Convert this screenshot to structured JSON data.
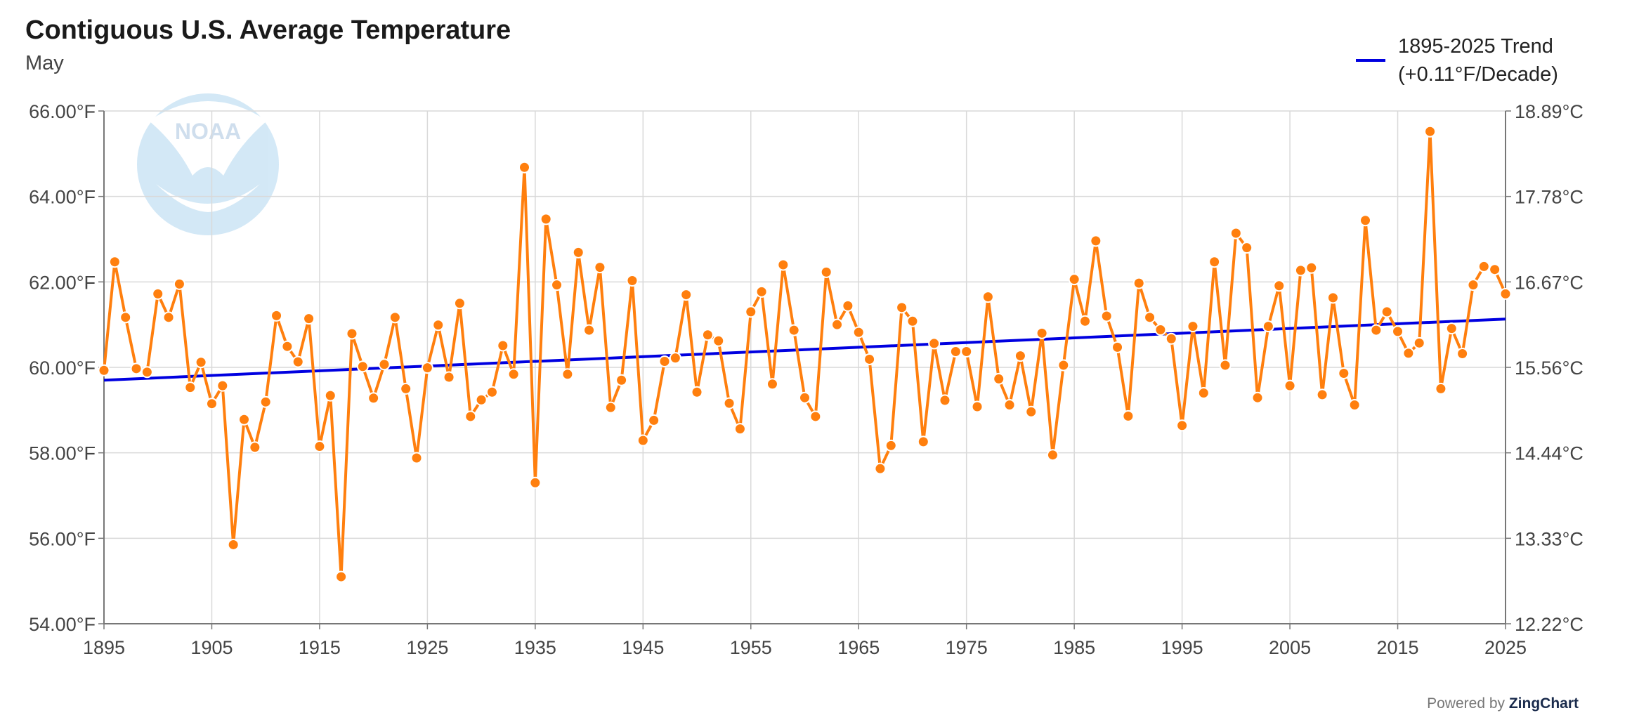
{
  "chart_data": {
    "type": "line",
    "title": "Contiguous U.S. Average Temperature",
    "subtitle": "May",
    "xlabel": "",
    "ylabel": "",
    "xlim": [
      1895,
      2025
    ],
    "ylim": [
      54,
      66
    ],
    "x_ticks": [
      "1895",
      "1905",
      "1915",
      "1925",
      "1935",
      "1945",
      "1955",
      "1965",
      "1975",
      "1985",
      "1995",
      "2005",
      "2015",
      "2025"
    ],
    "y_ticks_left": [
      "54.00°F",
      "56.00°F",
      "58.00°F",
      "60.00°F",
      "62.00°F",
      "64.00°F",
      "66.00°F"
    ],
    "y_ticks_right": [
      "12.22°C",
      "13.33°C",
      "14.44°C",
      "15.56°C",
      "16.67°C",
      "17.78°C",
      "18.89°C"
    ],
    "grid": true,
    "legend_position": "top-right",
    "x": [
      1895,
      1896,
      1897,
      1898,
      1899,
      1900,
      1901,
      1902,
      1903,
      1904,
      1905,
      1906,
      1907,
      1908,
      1909,
      1910,
      1911,
      1912,
      1913,
      1914,
      1915,
      1916,
      1917,
      1918,
      1919,
      1920,
      1921,
      1922,
      1923,
      1924,
      1925,
      1926,
      1927,
      1928,
      1929,
      1930,
      1931,
      1932,
      1933,
      1934,
      1935,
      1936,
      1937,
      1938,
      1939,
      1940,
      1941,
      1942,
      1943,
      1944,
      1945,
      1946,
      1947,
      1948,
      1949,
      1950,
      1951,
      1952,
      1953,
      1954,
      1955,
      1956,
      1957,
      1958,
      1959,
      1960,
      1961,
      1962,
      1963,
      1964,
      1965,
      1966,
      1967,
      1968,
      1969,
      1970,
      1971,
      1972,
      1973,
      1974,
      1975,
      1976,
      1977,
      1978,
      1979,
      1980,
      1981,
      1982,
      1983,
      1984,
      1985,
      1986,
      1987,
      1988,
      1989,
      1990,
      1991,
      1992,
      1993,
      1994,
      1995,
      1996,
      1997,
      1998,
      1999,
      2000,
      2001,
      2002,
      2003,
      2004,
      2005,
      2006,
      2007,
      2008,
      2009,
      2010,
      2011,
      2012,
      2013,
      2014,
      2015,
      2016,
      2017,
      2018,
      2019,
      2020,
      2021,
      2022,
      2023,
      2024,
      2025
    ],
    "series": [
      {
        "name": "",
        "color": "#ff7f0e",
        "values": [
          59.93,
          62.47,
          61.17,
          59.97,
          59.89,
          61.72,
          61.17,
          61.95,
          59.53,
          60.12,
          59.15,
          59.57,
          55.85,
          58.78,
          58.13,
          59.19,
          61.21,
          60.49,
          60.13,
          61.14,
          58.15,
          59.34,
          55.1,
          60.79,
          60.02,
          59.28,
          60.07,
          61.17,
          59.5,
          57.88,
          59.99,
          60.99,
          59.77,
          61.5,
          58.85,
          59.24,
          59.42,
          60.51,
          59.84,
          64.68,
          57.3,
          63.47,
          61.93,
          59.84,
          62.69,
          60.87,
          62.34,
          59.06,
          59.7,
          62.03,
          58.29,
          58.76,
          60.14,
          60.22,
          61.7,
          59.42,
          60.76,
          60.62,
          59.16,
          58.56,
          61.3,
          61.77,
          59.61,
          62.4,
          60.87,
          59.29,
          58.85,
          62.23,
          61.0,
          61.44,
          60.82,
          60.19,
          57.63,
          58.17,
          61.4,
          61.08,
          58.26,
          60.56,
          59.23,
          60.37,
          60.37,
          59.08,
          61.65,
          59.73,
          59.12,
          60.27,
          58.96,
          60.8,
          57.95,
          60.05,
          62.06,
          61.08,
          62.96,
          61.2,
          60.47,
          58.86,
          61.97,
          61.17,
          60.88,
          60.67,
          58.64,
          60.96,
          59.4,
          62.47,
          60.05,
          63.14,
          62.8,
          59.29,
          60.96,
          61.91,
          59.57,
          62.27,
          62.33,
          59.36,
          61.63,
          59.86,
          59.12,
          63.44,
          60.87,
          61.3,
          60.84,
          60.33,
          60.57,
          65.52,
          59.5,
          60.91,
          60.32,
          61.93,
          62.36,
          62.29,
          61.72
        ]
      },
      {
        "name": "1895-2025 Trend",
        "label": "(+0.11°F/Decade)",
        "color": "#0000e0",
        "type": "line",
        "x": [
          1895,
          2025
        ],
        "values": [
          59.7,
          61.13
        ]
      }
    ]
  },
  "footer": {
    "powered_prefix": "Powered by ",
    "powered_brand": "ZingChart"
  },
  "logo_text": "NOAA"
}
